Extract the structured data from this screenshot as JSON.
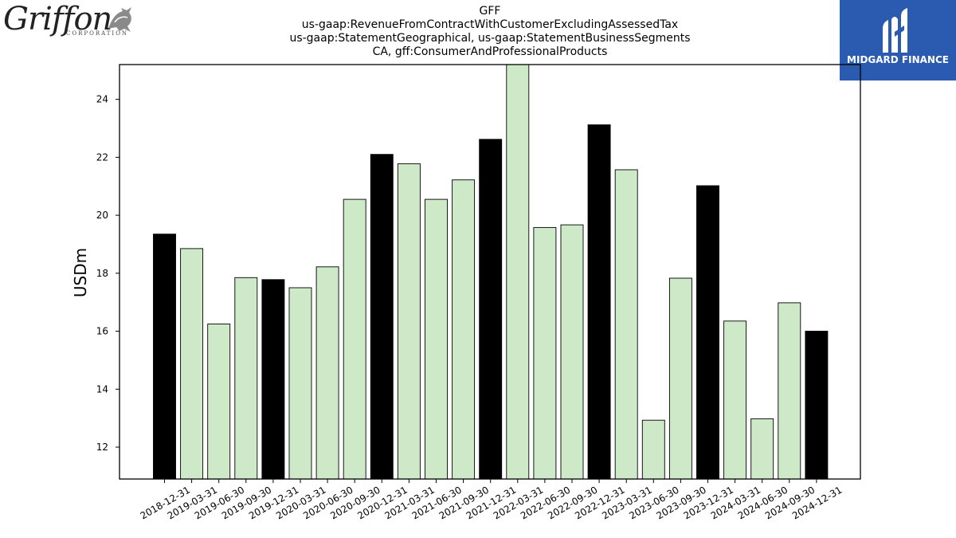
{
  "header": {
    "title_lines": [
      "GFF",
      "us-gaap:RevenueFromContractWithCustomerExcludingAssessedTax",
      "us-gaap:StatementGeographical, us-gaap:StatementBusinessSegments",
      "CA, gff:ConsumerAndProfessionalProducts"
    ]
  },
  "logos": {
    "left": {
      "name": "Griffon",
      "subtitle": "CORPORATION",
      "icon": "griffin-icon"
    },
    "right": {
      "name": "MIDGARD FINANCE",
      "icon": "midgard-m-icon",
      "background": "#2b5bb0"
    }
  },
  "chart_data": {
    "type": "bar",
    "ylabel": "USDm",
    "xlabel": "",
    "ylim": [
      10.9,
      25.2
    ],
    "yticks": [
      12,
      14,
      16,
      18,
      20,
      22,
      24
    ],
    "grid": false,
    "colors": {
      "annual": "#000000",
      "quarterly": "#cde9c8",
      "edge": "#000000"
    },
    "categories": [
      "2018-12-31",
      "2019-03-31",
      "2019-06-30",
      "2019-09-30",
      "2019-12-31",
      "2020-03-31",
      "2020-06-30",
      "2020-09-30",
      "2020-12-31",
      "2021-03-31",
      "2021-06-30",
      "2021-09-30",
      "2021-12-31",
      "2022-03-31",
      "2022-06-30",
      "2022-09-30",
      "2022-12-31",
      "2023-03-31",
      "2023-06-30",
      "2023-09-30",
      "2023-12-31",
      "2024-03-31",
      "2024-06-30",
      "2024-09-30",
      "2024-12-31"
    ],
    "values": [
      19.35,
      18.85,
      16.25,
      17.85,
      17.78,
      17.5,
      18.22,
      20.55,
      22.1,
      21.78,
      20.55,
      21.22,
      22.62,
      25.5,
      19.58,
      19.67,
      23.12,
      21.57,
      12.93,
      17.83,
      21.02,
      16.35,
      12.98,
      16.98,
      16.0
    ],
    "highlight": [
      true,
      false,
      false,
      false,
      true,
      false,
      false,
      false,
      true,
      false,
      false,
      false,
      true,
      false,
      false,
      false,
      true,
      false,
      false,
      false,
      true,
      false,
      false,
      false,
      true
    ]
  }
}
